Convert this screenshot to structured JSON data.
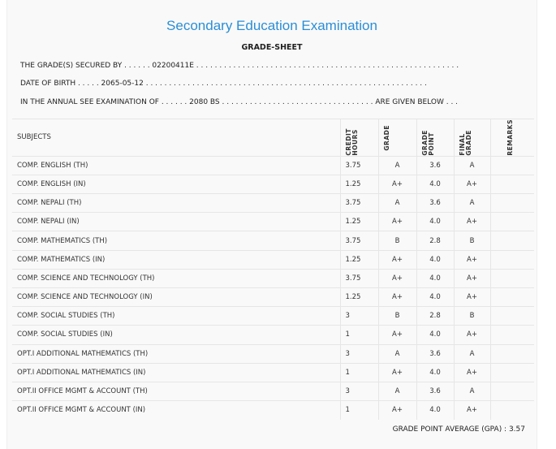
{
  "title": "Secondary Education Examination",
  "subtitle": "GRADE-SHEET",
  "lines": [
    "THE GRADE(S) SECURED BY . . . . . . 02200411E . . . . . . . . . . . . . . . . . . . . . . . . . . . . . . . . . . . . . . . . . . . . . . . . . . . . . . . . .",
    "DATE OF BIRTH . . . . . 2065-05-12 . . . . . . . . . . . . . . . . . . . . . . . . . . . . . . . . . . . . . . . . . . . . . . . . . . . . . . . . . . . . .",
    "IN THE ANNUAL SEE EXAMINATION OF . . . . . . 2080 BS . . . . . . . . . . . . . . . . . . . . . . . . . . . . . . . . . ARE GIVEN BELOW . . ."
  ],
  "headers": [
    "SUBJECTS",
    "CREDIT HOURS",
    "GRADE",
    "GRADE POINT",
    "FINAL GRADE",
    "REMARKS"
  ],
  "rows": [
    [
      "COMP. ENGLISH (TH)",
      "3.75",
      "A",
      "3.6",
      "A"
    ],
    [
      "COMP. ENGLISH (IN)",
      "1.25",
      "A+",
      "4.0",
      "A+"
    ],
    [
      "COMP. NEPALI (TH)",
      "3.75",
      "A",
      "3.6",
      "A"
    ],
    [
      "COMP. NEPALI (IN)",
      "1.25",
      "A+",
      "4.0",
      "A+"
    ],
    [
      "COMP. MATHEMATICS (TH)",
      "3.75",
      "B",
      "2.8",
      "B"
    ],
    [
      "COMP. MATHEMATICS (IN)",
      "1.25",
      "A+",
      "4.0",
      "A+"
    ],
    [
      "COMP. SCIENCE AND TECHNOLOGY (TH)",
      "3.75",
      "A+",
      "4.0",
      "A+"
    ],
    [
      "COMP. SCIENCE AND TECHNOLOGY (IN)",
      "1.25",
      "A+",
      "4.0",
      "A+"
    ],
    [
      "COMP. SOCIAL STUDIES (TH)",
      "3",
      "B",
      "2.8",
      "B"
    ],
    [
      "COMP. SOCIAL STUDIES (IN)",
      "1",
      "A+",
      "4.0",
      "A+"
    ],
    [
      "OPT.I ADDITIONAL MATHEMATICS (TH)",
      "3",
      "A",
      "3.6",
      "A"
    ],
    [
      "OPT.I ADDITIONAL MATHEMATICS (IN)",
      "1",
      "A+",
      "4.0",
      "A+"
    ],
    [
      "OPT.II OFFICE MGMT & ACCOUNT (TH)",
      "3",
      "A",
      "3.6",
      "A"
    ],
    [
      "OPT.II OFFICE MGMT & ACCOUNT (IN)",
      "1",
      "A+",
      "4.0",
      "A+"
    ]
  ],
  "gpa": "GRADE POINT AVERAGE (GPA) : 3.57"
}
